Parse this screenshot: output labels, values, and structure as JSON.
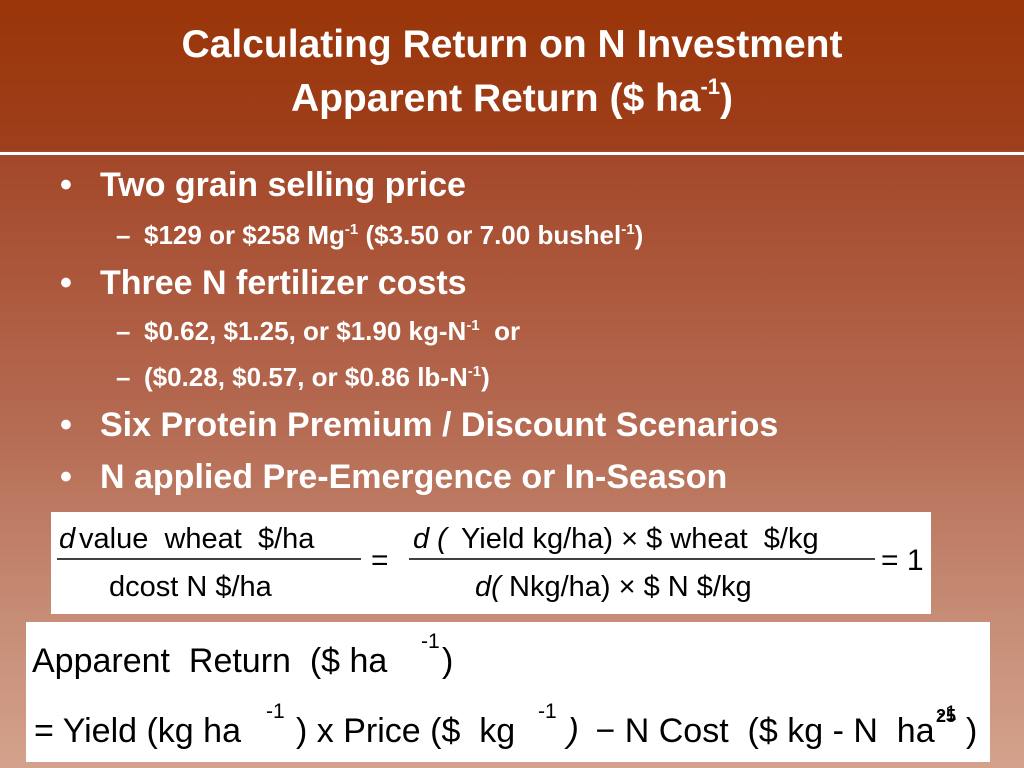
{
  "slide": {
    "title_line1": "Calculating Return on N Investment",
    "title_line2_main": "Apparent Return ($ ha",
    "title_line2_sup": "-1",
    "title_line2_end": ")"
  },
  "bullets": [
    {
      "level": 1,
      "text": "Two grain selling price"
    },
    {
      "level": 2,
      "parts": [
        "$129 or $258 Mg",
        "-1",
        " ($3.50 or 7.00 bushel",
        "-1",
        ")"
      ]
    },
    {
      "level": 1,
      "text": "Three N fertilizer costs"
    },
    {
      "level": 2,
      "parts": [
        "$0.62, $1.25, or $1.90 kg-N",
        "-1",
        "  or"
      ]
    },
    {
      "level": 2,
      "parts": [
        "($0.28, $0.57, or $0.86 lb-N",
        "-1",
        ")"
      ]
    },
    {
      "level": 1,
      "text": "Six Protein Premium / Discount Scenarios"
    },
    {
      "level": 1,
      "text": "N applied Pre-Emergence or In-Season"
    }
  ],
  "bullet_marks": {
    "level1": "•",
    "level2": "–"
  },
  "equation": {
    "lhs_num_d": "d",
    "lhs_num_text": "value  wheat  $/ha",
    "lhs_den_text": "dcost N $/ha",
    "equals": "=",
    "rhs_num_d": "d (",
    "rhs_num_text": "Yield kg/ha) × $ wheat  $/kg",
    "rhs_den_d": "d(",
    "rhs_den_text": "Nkg/ha) × $ N $/kg",
    "result": "= 1"
  },
  "apparent_return": {
    "line1_text": "Apparent  Return  ($ ha",
    "line1_sup": "-1",
    "line1_end": ")",
    "line2_a": "= Yield (kg ha",
    "line2_sup1": "-1",
    "line2_b": ") x Price ($  kg",
    "line2_sup2": "-1",
    "line2_c_italic": " )",
    "line2_d": " − N Cost  ($ kg - N  ha",
    "line2_sup3": "-1",
    "line2_e": ")"
  },
  "slide_number": "25"
}
